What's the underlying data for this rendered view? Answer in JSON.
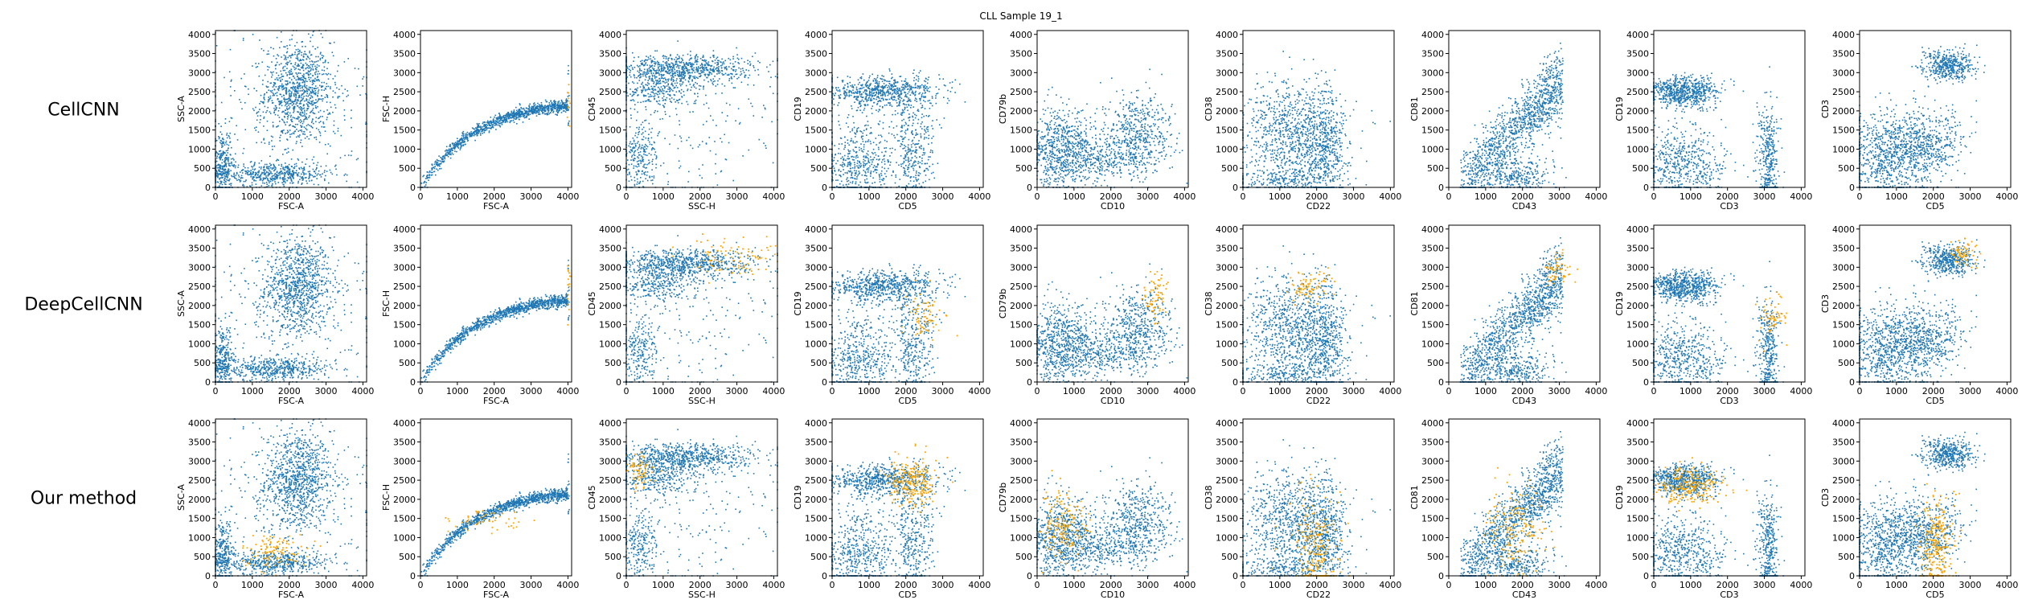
{
  "figure": {
    "title": "CLL Sample 19_1",
    "rows": [
      "CellCNN",
      "DeepCellCNN",
      "Our method"
    ]
  },
  "colors": {
    "base": "#1f77b4",
    "highlight": "#ffa500",
    "axis": "#000000"
  },
  "chart_data": {
    "type": "scatter",
    "title": "CLL Sample 19_1",
    "xlim": [
      0,
      4100
    ],
    "ylim": [
      0,
      4100
    ],
    "ticks": [
      0,
      500,
      1000,
      1500,
      2000,
      2500,
      3000,
      3500,
      4000
    ],
    "xticks": [
      0,
      1000,
      2000,
      3000,
      4000
    ],
    "panels": [
      {
        "xlabel": "FSC-A",
        "ylabel": "SSC-A",
        "clusters": [
          {
            "cx": 2250,
            "cy": 2500,
            "sx": 450,
            "sy": 650,
            "n": 900
          },
          {
            "cx": 1500,
            "cy": 350,
            "sx": 900,
            "sy": 150,
            "n": 550
          },
          {
            "cx": 200,
            "cy": 600,
            "sx": 120,
            "sy": 450,
            "n": 250
          },
          {
            "cx": 2000,
            "cy": 2000,
            "sx": 1300,
            "sy": 1100,
            "n": 280
          }
        ],
        "highlight": [
          [],
          [],
          [
            {
              "cx": 1600,
              "cy": 650,
              "sx": 450,
              "sy": 220,
              "n": 110
            }
          ]
        ]
      },
      {
        "xlabel": "FSC-A",
        "ylabel": "FSC-H",
        "curve": "sat",
        "n": 1100,
        "highlight": [
          [
            {
              "cx": 4020,
              "cy": 2400,
              "sx": 20,
              "sy": 400,
              "n": 10
            }
          ],
          [
            {
              "cx": 4020,
              "cy": 2400,
              "sx": 20,
              "sy": 400,
              "n": 15
            }
          ],
          [
            {
              "cx": 1600,
              "cy": 1450,
              "sx": 500,
              "sy": 200,
              "n": 50
            }
          ]
        ]
      },
      {
        "xlabel": "SSC-H",
        "ylabel": "CD45",
        "clusters": [
          {
            "cx": 1500,
            "cy": 3100,
            "sx": 1000,
            "sy": 180,
            "n": 750
          },
          {
            "cx": 800,
            "cy": 2550,
            "sx": 500,
            "sy": 250,
            "n": 300
          },
          {
            "cx": 350,
            "cy": 800,
            "sx": 250,
            "sy": 500,
            "n": 230
          },
          {
            "cx": 2000,
            "cy": 1500,
            "sx": 1300,
            "sy": 1000,
            "n": 170
          }
        ],
        "highlight": [
          [],
          [
            {
              "cx": 2900,
              "cy": 3250,
              "sx": 600,
              "sy": 250,
              "n": 90
            }
          ],
          [
            {
              "cx": 350,
              "cy": 2700,
              "sx": 180,
              "sy": 250,
              "n": 70
            }
          ]
        ]
      },
      {
        "xlabel": "CD5",
        "ylabel": "CD19",
        "clusters": [
          {
            "cx": 1400,
            "cy": 2500,
            "sx": 800,
            "sy": 200,
            "n": 700
          },
          {
            "cx": 700,
            "cy": 600,
            "sx": 500,
            "sy": 600,
            "n": 500
          },
          {
            "cx": 2200,
            "cy": 1000,
            "sx": 300,
            "sy": 700,
            "n": 350
          }
        ],
        "highlight": [
          [],
          [
            {
              "cx": 2450,
              "cy": 1700,
              "sx": 250,
              "sy": 300,
              "n": 70
            }
          ],
          [
            {
              "cx": 2200,
              "cy": 2450,
              "sx": 320,
              "sy": 300,
              "n": 230
            }
          ]
        ]
      },
      {
        "xlabel": "CD10",
        "ylabel": "CD79b",
        "clusters": [
          {
            "cx": 700,
            "cy": 1000,
            "sx": 450,
            "sy": 500,
            "n": 700
          },
          {
            "cx": 2700,
            "cy": 1400,
            "sx": 500,
            "sy": 550,
            "n": 550
          },
          {
            "cx": 1700,
            "cy": 700,
            "sx": 700,
            "sy": 250,
            "n": 250
          }
        ],
        "highlight": [
          [],
          [
            {
              "cx": 3200,
              "cy": 2200,
              "sx": 150,
              "sy": 350,
              "n": 70
            }
          ],
          [
            {
              "cx": 700,
              "cy": 1300,
              "sx": 300,
              "sy": 450,
              "n": 160
            }
          ]
        ]
      },
      {
        "xlabel": "CD22",
        "ylabel": "CD38",
        "clusters": [
          {
            "cx": 1300,
            "cy": 1400,
            "sx": 700,
            "sy": 700,
            "n": 900
          },
          {
            "cx": 2200,
            "cy": 1000,
            "sx": 300,
            "sy": 800,
            "n": 450
          },
          {
            "cx": 1000,
            "cy": 200,
            "sx": 800,
            "sy": 150,
            "n": 200
          }
        ],
        "highlight": [
          [],
          [
            {
              "cx": 1800,
              "cy": 2500,
              "sx": 300,
              "sy": 200,
              "n": 80
            }
          ],
          [
            {
              "cx": 2000,
              "cy": 700,
              "sx": 300,
              "sy": 700,
              "n": 220
            }
          ]
        ]
      },
      {
        "xlabel": "CD43",
        "ylabel": "CD81",
        "curve": "diag",
        "n": 1200,
        "highlight": [
          [],
          [
            {
              "cx": 2950,
              "cy": 2900,
              "sx": 200,
              "sy": 200,
              "n": 60
            }
          ],
          [
            {
              "cx": 1800,
              "cy": 1200,
              "sx": 400,
              "sy": 600,
              "n": 170
            }
          ]
        ]
      },
      {
        "xlabel": "CD3",
        "ylabel": "CD19",
        "clusters": [
          {
            "cx": 800,
            "cy": 2500,
            "sx": 500,
            "sy": 200,
            "n": 700
          },
          {
            "cx": 700,
            "cy": 600,
            "sx": 600,
            "sy": 500,
            "n": 550
          },
          {
            "cx": 3100,
            "cy": 800,
            "sx": 150,
            "sy": 700,
            "n": 350
          }
        ],
        "highlight": [
          [],
          [
            {
              "cx": 3200,
              "cy": 1700,
              "sx": 200,
              "sy": 300,
              "n": 60
            }
          ],
          [
            {
              "cx": 1000,
              "cy": 2350,
              "sx": 450,
              "sy": 280,
              "n": 220
            }
          ]
        ]
      },
      {
        "xlabel": "CD5",
        "ylabel": "CD3",
        "clusters": [
          {
            "cx": 2400,
            "cy": 3200,
            "sx": 350,
            "sy": 200,
            "n": 450
          },
          {
            "cx": 900,
            "cy": 800,
            "sx": 700,
            "sy": 600,
            "n": 900
          },
          {
            "cx": 1800,
            "cy": 1200,
            "sx": 600,
            "sy": 400,
            "n": 350
          }
        ],
        "highlight": [
          [],
          [
            {
              "cx": 2800,
              "cy": 3400,
              "sx": 200,
              "sy": 200,
              "n": 60
            }
          ],
          [
            {
              "cx": 2100,
              "cy": 900,
              "sx": 220,
              "sy": 600,
              "n": 260
            }
          ]
        ]
      }
    ]
  }
}
